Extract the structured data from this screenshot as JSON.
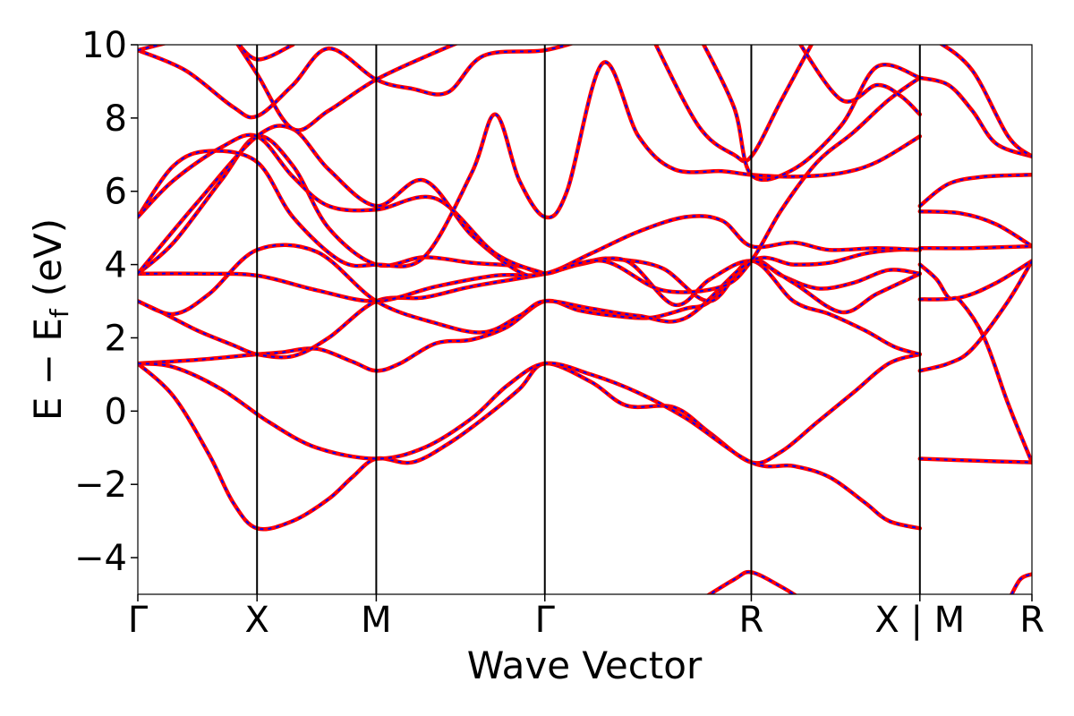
{
  "chart_data": {
    "type": "line",
    "title": "",
    "xlabel": "Wave Vector",
    "ylabel": "E − E",
    "ylabel_sub": "f",
    "ylabel_unit": "(eV)",
    "ylim": [
      -5,
      10
    ],
    "yticks": [
      -4,
      -2,
      0,
      2,
      4,
      6,
      8,
      10
    ],
    "ytick_labels": [
      "−4",
      "−2",
      "0",
      "2",
      "4",
      "6",
      "8",
      "10"
    ],
    "xlim": [
      0,
      7.5
    ],
    "xticks": [
      0,
      1,
      2,
      3.414,
      5.146,
      6.56,
      7.5
    ],
    "xtick_labels": [
      "Γ",
      "X",
      "M",
      "Γ",
      "R",
      "X | M",
      "R"
    ],
    "grid": false,
    "style": {
      "overlay_color": "#ff0000",
      "dashed_color": "#0000ff"
    },
    "series": [
      {
        "values": [
          [
            0,
            1.3
          ],
          [
            0.5,
            1.4
          ],
          [
            1.0,
            1.55
          ],
          [
            1.2,
            1.6
          ],
          [
            1.5,
            1.7
          ],
          [
            1.8,
            1.35
          ],
          [
            2.0,
            1.1
          ],
          [
            2.2,
            1.3
          ],
          [
            2.5,
            1.85
          ],
          [
            2.8,
            1.95
          ],
          [
            3.1,
            2.3
          ],
          [
            3.414,
            3.0
          ],
          [
            3.7,
            2.75
          ],
          [
            4.0,
            2.6
          ],
          [
            4.3,
            2.55
          ],
          [
            4.6,
            2.8
          ],
          [
            4.8,
            3.0
          ],
          [
            5.146,
            4.1
          ],
          [
            5.4,
            3.7
          ],
          [
            5.7,
            3.35
          ],
          [
            6.0,
            3.5
          ],
          [
            6.3,
            3.85
          ],
          [
            6.56,
            3.75
          ]
        ]
      },
      {
        "values": [
          [
            0,
            1.3
          ],
          [
            0.3,
            0.4
          ],
          [
            0.6,
            -1.2
          ],
          [
            0.8,
            -2.5
          ],
          [
            1.0,
            -3.2
          ],
          [
            1.3,
            -3.0
          ],
          [
            1.6,
            -2.4
          ],
          [
            1.8,
            -1.8
          ],
          [
            2.0,
            -1.3
          ],
          [
            2.3,
            -1.4
          ],
          [
            2.6,
            -0.9
          ],
          [
            2.9,
            -0.2
          ],
          [
            3.2,
            0.6
          ],
          [
            3.414,
            1.3
          ],
          [
            3.8,
            0.8
          ],
          [
            4.1,
            0.15
          ],
          [
            4.5,
            0.1
          ],
          [
            4.8,
            -0.6
          ],
          [
            5.146,
            -1.4
          ],
          [
            5.4,
            -1.1
          ],
          [
            5.7,
            -0.3
          ],
          [
            6.0,
            0.5
          ],
          [
            6.3,
            1.3
          ],
          [
            6.56,
            1.55
          ]
        ]
      },
      {
        "values": [
          [
            0,
            1.3
          ],
          [
            0.3,
            1.2
          ],
          [
            0.7,
            0.6
          ],
          [
            1.1,
            -0.3
          ],
          [
            1.5,
            -1.0
          ],
          [
            2.0,
            -1.3
          ],
          [
            2.4,
            -1.0
          ],
          [
            2.8,
            -0.2
          ],
          [
            3.1,
            0.7
          ],
          [
            3.414,
            1.3
          ],
          [
            3.8,
            1.0
          ],
          [
            4.2,
            0.5
          ],
          [
            4.6,
            -0.2
          ],
          [
            5.146,
            -1.4
          ],
          [
            5.5,
            -1.5
          ],
          [
            5.8,
            -1.8
          ],
          [
            6.1,
            -2.5
          ],
          [
            6.3,
            -3.0
          ],
          [
            6.56,
            -3.2
          ]
        ]
      },
      {
        "values": [
          [
            0,
            3.0
          ],
          [
            0.2,
            2.7
          ],
          [
            0.5,
            2.2
          ],
          [
            0.8,
            1.8
          ],
          [
            1.0,
            1.55
          ],
          [
            1.3,
            1.5
          ],
          [
            1.6,
            2.0
          ],
          [
            2.0,
            3.0
          ],
          [
            2.4,
            3.1
          ],
          [
            2.8,
            3.4
          ],
          [
            3.414,
            3.75
          ],
          [
            3.8,
            4.1
          ],
          [
            4.0,
            4.15
          ],
          [
            4.4,
            3.9
          ],
          [
            4.8,
            3.0
          ],
          [
            5.146,
            4.1
          ],
          [
            5.5,
            3.0
          ],
          [
            5.8,
            2.65
          ],
          [
            6.1,
            2.2
          ],
          [
            6.35,
            1.75
          ],
          [
            6.56,
            1.55
          ]
        ]
      },
      {
        "values": [
          [
            0,
            3.0
          ],
          [
            0.3,
            2.65
          ],
          [
            0.6,
            3.2
          ],
          [
            1.0,
            4.4
          ],
          [
            1.5,
            4.35
          ],
          [
            2.0,
            3.0
          ],
          [
            2.5,
            2.4
          ],
          [
            2.9,
            2.15
          ],
          [
            3.2,
            2.6
          ],
          [
            3.414,
            3.0
          ],
          [
            3.8,
            2.8
          ],
          [
            4.2,
            2.6
          ],
          [
            4.6,
            2.55
          ],
          [
            5.146,
            4.1
          ],
          [
            5.5,
            4.0
          ],
          [
            5.8,
            4.05
          ],
          [
            6.1,
            4.3
          ],
          [
            6.35,
            4.4
          ],
          [
            6.56,
            4.4
          ]
        ]
      },
      {
        "values": [
          [
            0,
            3.75
          ],
          [
            0.5,
            3.75
          ],
          [
            1.0,
            3.7
          ],
          [
            1.5,
            3.3
          ],
          [
            2.0,
            3.0
          ],
          [
            2.5,
            3.4
          ],
          [
            3.0,
            3.7
          ],
          [
            3.414,
            3.75
          ],
          [
            3.8,
            4.3
          ],
          [
            4.2,
            4.9
          ],
          [
            4.6,
            5.3
          ],
          [
            4.9,
            5.2
          ],
          [
            5.146,
            4.5
          ],
          [
            5.5,
            4.6
          ],
          [
            5.8,
            4.4
          ],
          [
            6.2,
            4.45
          ],
          [
            6.56,
            4.4
          ]
        ]
      },
      {
        "values": [
          [
            0,
            3.75
          ],
          [
            0.3,
            4.6
          ],
          [
            0.7,
            6.3
          ],
          [
            1.0,
            7.5
          ],
          [
            1.3,
            6.7
          ],
          [
            1.6,
            5.0
          ],
          [
            2.0,
            4.0
          ],
          [
            2.4,
            4.2
          ],
          [
            2.8,
            4.05
          ],
          [
            3.2,
            3.95
          ],
          [
            3.414,
            3.75
          ],
          [
            3.7,
            4.0
          ],
          [
            4.1,
            4.1
          ],
          [
            4.5,
            2.9
          ],
          [
            4.8,
            3.6
          ],
          [
            5.146,
            4.1
          ],
          [
            5.5,
            3.5
          ],
          [
            5.9,
            2.7
          ],
          [
            6.2,
            3.2
          ],
          [
            6.56,
            3.75
          ]
        ]
      },
      {
        "values": [
          [
            0,
            3.75
          ],
          [
            0.5,
            5.7
          ],
          [
            1.0,
            7.5
          ],
          [
            1.3,
            7.7
          ],
          [
            1.6,
            6.6
          ],
          [
            2.0,
            5.6
          ],
          [
            2.4,
            6.3
          ],
          [
            2.8,
            4.8
          ],
          [
            3.2,
            3.8
          ],
          [
            3.414,
            3.75
          ],
          [
            3.9,
            4.1
          ],
          [
            4.4,
            3.3
          ],
          [
            4.9,
            3.4
          ],
          [
            5.146,
            4.1
          ],
          [
            5.4,
            5.5
          ],
          [
            5.7,
            6.8
          ],
          [
            6.0,
            7.6
          ],
          [
            6.3,
            8.5
          ],
          [
            6.56,
            9.1
          ]
        ]
      },
      {
        "values": [
          [
            0,
            5.3
          ],
          [
            0.3,
            6.7
          ],
          [
            0.6,
            7.1
          ],
          [
            1.0,
            6.8
          ],
          [
            1.3,
            5.3
          ],
          [
            1.7,
            4.1
          ],
          [
            2.0,
            4.0
          ],
          [
            2.4,
            4.2
          ],
          [
            2.8,
            6.5
          ],
          [
            3.0,
            8.1
          ],
          [
            3.2,
            6.3
          ],
          [
            3.414,
            5.3
          ],
          [
            3.6,
            6.0
          ],
          [
            3.9,
            9.5
          ],
          [
            4.2,
            7.5
          ],
          [
            4.5,
            6.6
          ],
          [
            4.9,
            6.55
          ],
          [
            5.146,
            6.45
          ],
          [
            5.5,
            6.4
          ],
          [
            5.9,
            6.5
          ],
          [
            6.2,
            6.8
          ],
          [
            6.56,
            7.5
          ]
        ]
      },
      {
        "values": [
          [
            0,
            5.3
          ],
          [
            0.3,
            6.3
          ],
          [
            0.7,
            7.2
          ],
          [
            1.0,
            7.5
          ],
          [
            1.3,
            6.4
          ],
          [
            1.6,
            5.6
          ],
          [
            2.0,
            5.5
          ],
          [
            2.5,
            5.8
          ],
          [
            3.0,
            4.3
          ],
          [
            3.414,
            3.75
          ]
        ]
      },
      {
        "values": [
          [
            0,
            9.85
          ],
          [
            0.4,
            9.3
          ],
          [
            0.8,
            8.3
          ],
          [
            1.0,
            8.05
          ],
          [
            1.3,
            8.9
          ],
          [
            1.6,
            9.9
          ],
          [
            2.0,
            9.05
          ],
          [
            2.3,
            8.8
          ],
          [
            2.6,
            8.7
          ],
          [
            2.9,
            9.7
          ],
          [
            3.414,
            9.85
          ],
          [
            3.8,
            10.2
          ]
        ]
      },
      {
        "values": [
          [
            0,
            9.85
          ],
          [
            0.3,
            10.1
          ]
        ]
      },
      {
        "values": [
          [
            0.8,
            10.2
          ],
          [
            1.0,
            9.2
          ],
          [
            1.3,
            7.7
          ],
          [
            1.6,
            8.2
          ],
          [
            2.0,
            9.05
          ],
          [
            2.5,
            9.8
          ],
          [
            2.8,
            10.2
          ]
        ]
      },
      {
        "values": [
          [
            0.8,
            10.2
          ],
          [
            1.0,
            9.6
          ],
          [
            1.3,
            10.0
          ]
        ]
      },
      {
        "values": [
          [
            4.3,
            10.3
          ],
          [
            4.7,
            7.8
          ],
          [
            5.0,
            7.0
          ],
          [
            5.146,
            6.95
          ],
          [
            5.4,
            8.5
          ],
          [
            5.7,
            10.3
          ]
        ]
      },
      {
        "values": [
          [
            4.7,
            10.3
          ],
          [
            5.0,
            8.3
          ],
          [
            5.146,
            6.45
          ],
          [
            5.5,
            6.6
          ],
          [
            5.9,
            7.8
          ],
          [
            6.2,
            9.4
          ],
          [
            6.56,
            9.1
          ]
        ]
      },
      {
        "values": [
          [
            5.5,
            10.3
          ],
          [
            5.9,
            8.5
          ],
          [
            6.2,
            8.9
          ],
          [
            6.4,
            8.6
          ],
          [
            6.56,
            8.1
          ]
        ]
      },
      {
        "values": [
          [
            4.7,
            -5.2
          ],
          [
            5.0,
            -4.6
          ],
          [
            5.146,
            -4.4
          ],
          [
            5.4,
            -4.8
          ],
          [
            5.6,
            -5.2
          ]
        ]
      },
      {
        "values": [
          [
            6.56,
            9.1
          ],
          [
            6.8,
            8.9
          ],
          [
            7.0,
            8.2
          ],
          [
            7.2,
            7.3
          ],
          [
            7.5,
            6.95
          ]
        ]
      },
      {
        "values": [
          [
            6.56,
            5.6
          ],
          [
            6.8,
            6.2
          ],
          [
            7.1,
            6.4
          ],
          [
            7.5,
            6.45
          ]
        ]
      },
      {
        "values": [
          [
            6.56,
            5.45
          ],
          [
            6.9,
            5.4
          ],
          [
            7.2,
            5.1
          ],
          [
            7.5,
            4.5
          ]
        ]
      },
      {
        "values": [
          [
            6.56,
            4.45
          ],
          [
            7.0,
            4.45
          ],
          [
            7.5,
            4.5
          ]
        ]
      },
      {
        "values": [
          [
            6.56,
            4.0
          ],
          [
            6.7,
            3.6
          ],
          [
            6.8,
            3.1
          ],
          [
            6.9,
            3.0
          ],
          [
            7.1,
            2.0
          ],
          [
            7.3,
            0.2
          ],
          [
            7.5,
            -1.4
          ]
        ]
      },
      {
        "values": [
          [
            6.56,
            3.05
          ],
          [
            6.9,
            3.1
          ],
          [
            7.2,
            3.5
          ],
          [
            7.5,
            4.1
          ]
        ]
      },
      {
        "values": [
          [
            6.56,
            1.1
          ],
          [
            6.8,
            1.3
          ],
          [
            7.0,
            1.7
          ],
          [
            7.3,
            3.0
          ],
          [
            7.5,
            4.1
          ]
        ]
      },
      {
        "values": [
          [
            6.56,
            -1.3
          ],
          [
            7.0,
            -1.35
          ],
          [
            7.5,
            -1.4
          ]
        ]
      },
      {
        "values": [
          [
            7.3,
            -5.2
          ],
          [
            7.4,
            -4.6
          ],
          [
            7.5,
            -4.45
          ]
        ]
      },
      {
        "values": [
          [
            6.56,
            10.2
          ],
          [
            6.7,
            10.1
          ],
          [
            7.0,
            9.3
          ],
          [
            7.3,
            7.5
          ],
          [
            7.5,
            6.95
          ]
        ]
      }
    ]
  }
}
